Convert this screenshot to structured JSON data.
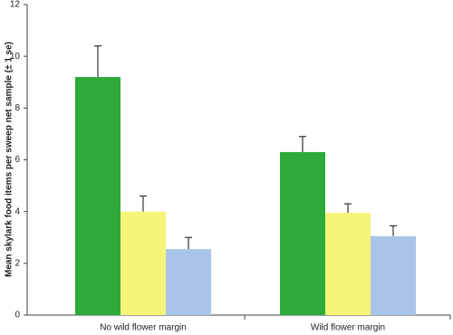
{
  "chart_data": {
    "type": "bar",
    "y_label": "Mean skylark food items per sweep net sample (± 1 se)",
    "categories": [
      "No wild flower margin",
      "Wild flower margin"
    ],
    "series": [
      {
        "color": "#2eaa3a",
        "values": [
          9.2,
          6.3
        ],
        "errors": [
          1.2,
          0.6
        ]
      },
      {
        "color": "#f5f57a",
        "values": [
          4.0,
          3.95
        ],
        "errors": [
          0.6,
          0.35
        ]
      },
      {
        "color": "#a9c4e8",
        "values": [
          2.55,
          3.05
        ],
        "errors": [
          0.45,
          0.4
        ]
      }
    ],
    "ylim": [
      0,
      12
    ],
    "yticks": [
      0,
      2,
      4,
      6,
      8,
      10,
      12
    ],
    "grid": false
  }
}
